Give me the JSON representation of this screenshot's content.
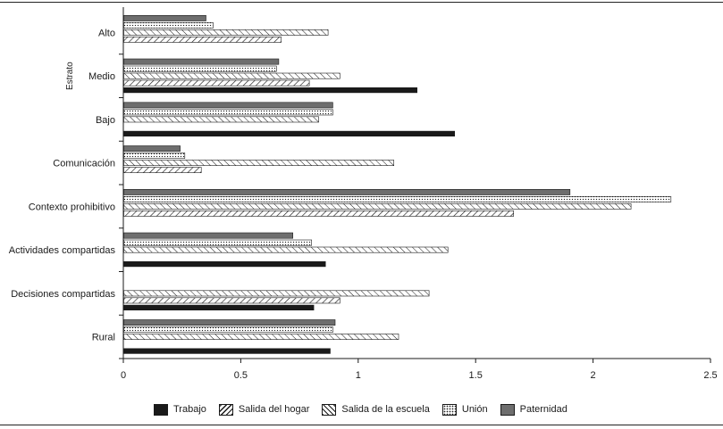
{
  "chart_data": {
    "type": "bar",
    "orientation": "horizontal",
    "categories": [
      "Alto",
      "Medio",
      "Bajo",
      "Comunicación",
      "Contexto prohibitivo",
      "Actividades compartidas",
      "Decisiones compartidas",
      "Rural"
    ],
    "group_axis_label": "Estrato",
    "group_axis_label_applies_to": [
      "Alto",
      "Medio",
      "Bajo"
    ],
    "series": [
      {
        "name": "Trabajo",
        "pattern": "solid",
        "color": "#1a1a1a",
        "values": [
          null,
          1.25,
          1.41,
          null,
          null,
          0.86,
          0.81,
          0.88
        ]
      },
      {
        "name": "Salida del hogar",
        "pattern": "forward-hatch",
        "color": "#1a1a1a",
        "values": [
          0.67,
          0.79,
          null,
          0.33,
          1.66,
          null,
          0.92,
          null
        ]
      },
      {
        "name": "Salida de la escuela",
        "pattern": "back-hatch",
        "color": "#1a1a1a",
        "values": [
          0.87,
          0.92,
          0.83,
          1.15,
          2.16,
          1.38,
          1.3,
          1.17
        ]
      },
      {
        "name": "Unión",
        "pattern": "dots",
        "color": "#1a1a1a",
        "values": [
          0.38,
          0.65,
          0.89,
          0.26,
          2.33,
          0.8,
          null,
          0.89
        ]
      },
      {
        "name": "Paternidad",
        "pattern": "gray",
        "color": "#6e6e6e",
        "values": [
          0.35,
          0.66,
          0.89,
          0.24,
          1.9,
          0.72,
          null,
          0.9
        ]
      }
    ],
    "xlim": [
      0,
      2.5
    ],
    "xticks": [
      "0",
      "0.5",
      "1",
      "1.5",
      "2",
      "2.5"
    ],
    "xtick_values": [
      0,
      0.5,
      1,
      1.5,
      2,
      2.5
    ],
    "grid": false,
    "legend_position": "bottom"
  }
}
